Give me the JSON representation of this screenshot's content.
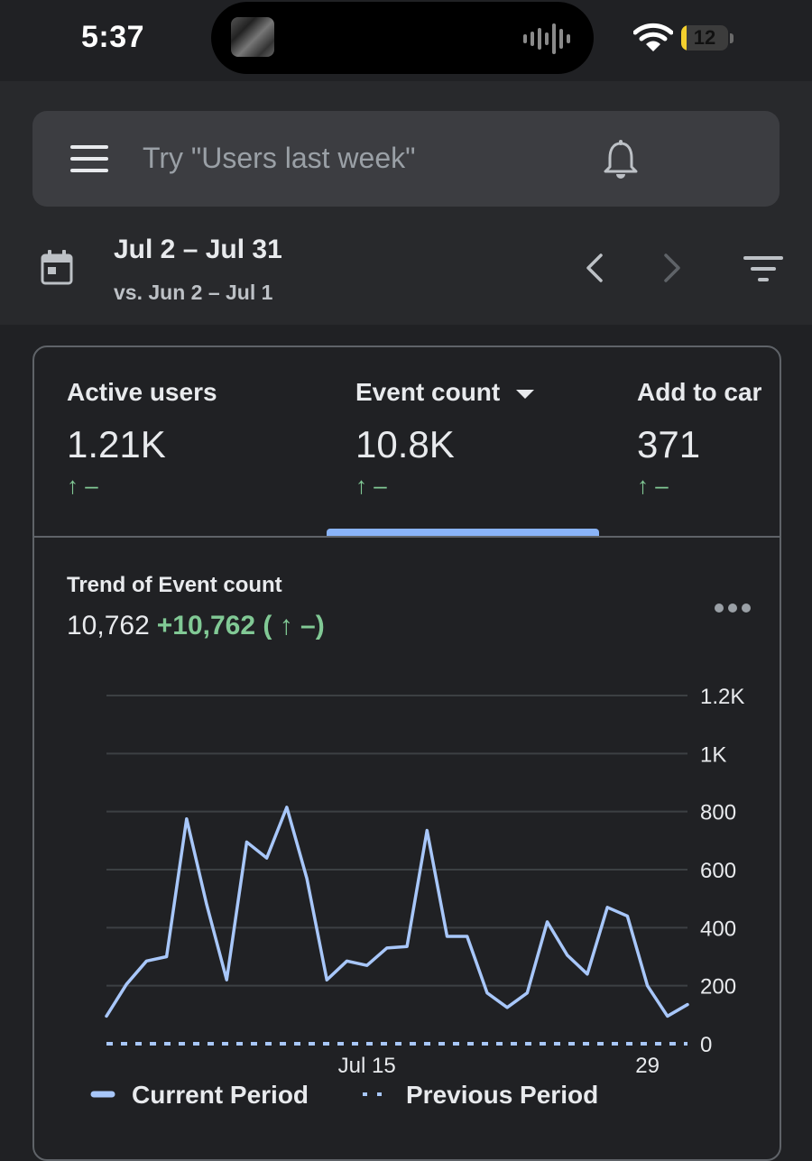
{
  "status_bar": {
    "time": "5:37",
    "battery": "12",
    "battery_level": 0.12
  },
  "search": {
    "placeholder": "Try \"Users last week\""
  },
  "date": {
    "range": "Jul 2 – Jul 31",
    "compare": "vs. Jun 2 – Jul 1"
  },
  "metrics": [
    {
      "label": "Active users",
      "value": "1.21K",
      "change": "↑ –"
    },
    {
      "label": "Event count",
      "value": "10.8K",
      "change": "↑ –"
    },
    {
      "label": "Add to car",
      "value": "371",
      "change": "↑ –"
    }
  ],
  "trend": {
    "title": "Trend of Event count",
    "value": "10,762",
    "change": "+10,762 ( ↑ –)"
  },
  "colors": {
    "accent": "#8ab4f8",
    "positive": "#81c995",
    "background": "#202124",
    "header": "#28292c"
  },
  "chart_data": {
    "type": "line",
    "x_tick_labels": [
      {
        "index": 13,
        "label": "Jul 15"
      },
      {
        "index": 27,
        "label": "29"
      }
    ],
    "y_ticks": [
      {
        "value": 1200,
        "label": "1.2K"
      },
      {
        "value": 1000,
        "label": "1K"
      },
      {
        "value": 800,
        "label": "800"
      },
      {
        "value": 600,
        "label": "600"
      },
      {
        "value": 400,
        "label": "400"
      },
      {
        "value": 200,
        "label": "200"
      },
      {
        "value": 0,
        "label": "0"
      }
    ],
    "ylim": [
      0,
      1200
    ],
    "grid": true,
    "legend": "bottom",
    "series": [
      {
        "name": "Current Period",
        "style": "solid",
        "values": [
          95,
          205,
          285,
          300,
          775,
          480,
          220,
          695,
          640,
          815,
          570,
          220,
          285,
          270,
          330,
          335,
          735,
          370,
          370,
          175,
          125,
          175,
          420,
          305,
          240,
          470,
          440,
          200,
          95,
          135
        ]
      },
      {
        "name": "Previous Period",
        "style": "dotted",
        "values": [
          0,
          0,
          0,
          0,
          0,
          0,
          0,
          0,
          0,
          0,
          0,
          0,
          0,
          0,
          0,
          0,
          0,
          0,
          0,
          0,
          0,
          0,
          0,
          0,
          0,
          0,
          0,
          0,
          0,
          0
        ]
      }
    ]
  }
}
